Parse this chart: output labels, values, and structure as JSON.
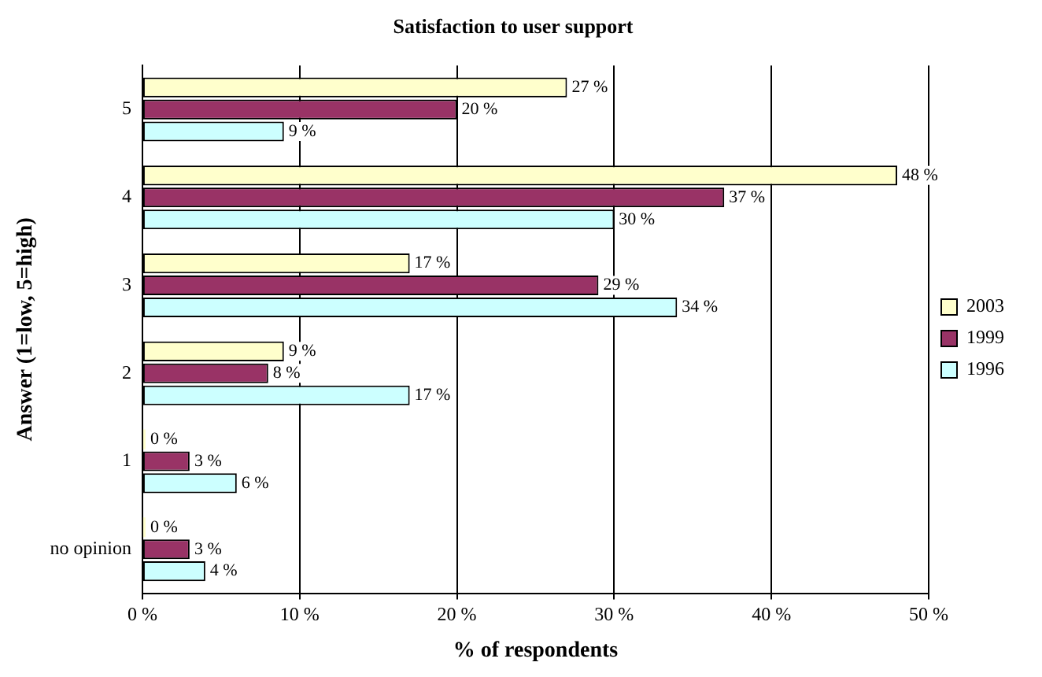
{
  "chart_data": {
    "type": "bar",
    "orientation": "horizontal",
    "title": "Satisfaction to user support",
    "xlabel": "% of respondents",
    "ylabel": "Answer (1=low, 5=high)",
    "categories": [
      "5",
      "4",
      "3",
      "2",
      "1",
      "no opinion"
    ],
    "series": [
      {
        "name": "2003",
        "color": "#ffffcc",
        "values": [
          27,
          48,
          17,
          9,
          0,
          0
        ],
        "value_labels": [
          "27 %",
          "48 %",
          "17 %",
          "9 %",
          "0 %",
          "0 %"
        ]
      },
      {
        "name": "1999",
        "color": "#993366",
        "values": [
          20,
          37,
          29,
          8,
          3,
          3
        ],
        "value_labels": [
          "20 %",
          "37 %",
          "29 %",
          "8 %",
          "3 %",
          "3 %"
        ]
      },
      {
        "name": "1996",
        "color": "#ccffff",
        "values": [
          9,
          30,
          34,
          17,
          6,
          4
        ],
        "value_labels": [
          "9 %",
          "30 %",
          "34 %",
          "17 %",
          "6 %",
          "4 %"
        ]
      }
    ],
    "xlim": [
      0,
      50
    ],
    "xticks": [
      {
        "value": 0,
        "label": "0 %"
      },
      {
        "value": 10,
        "label": "10 %"
      },
      {
        "value": 20,
        "label": "20 %"
      },
      {
        "value": 30,
        "label": "30 %"
      },
      {
        "value": 40,
        "label": "40 %"
      },
      {
        "value": 50,
        "label": "50 %"
      }
    ],
    "grid": "x",
    "legend": "right"
  }
}
